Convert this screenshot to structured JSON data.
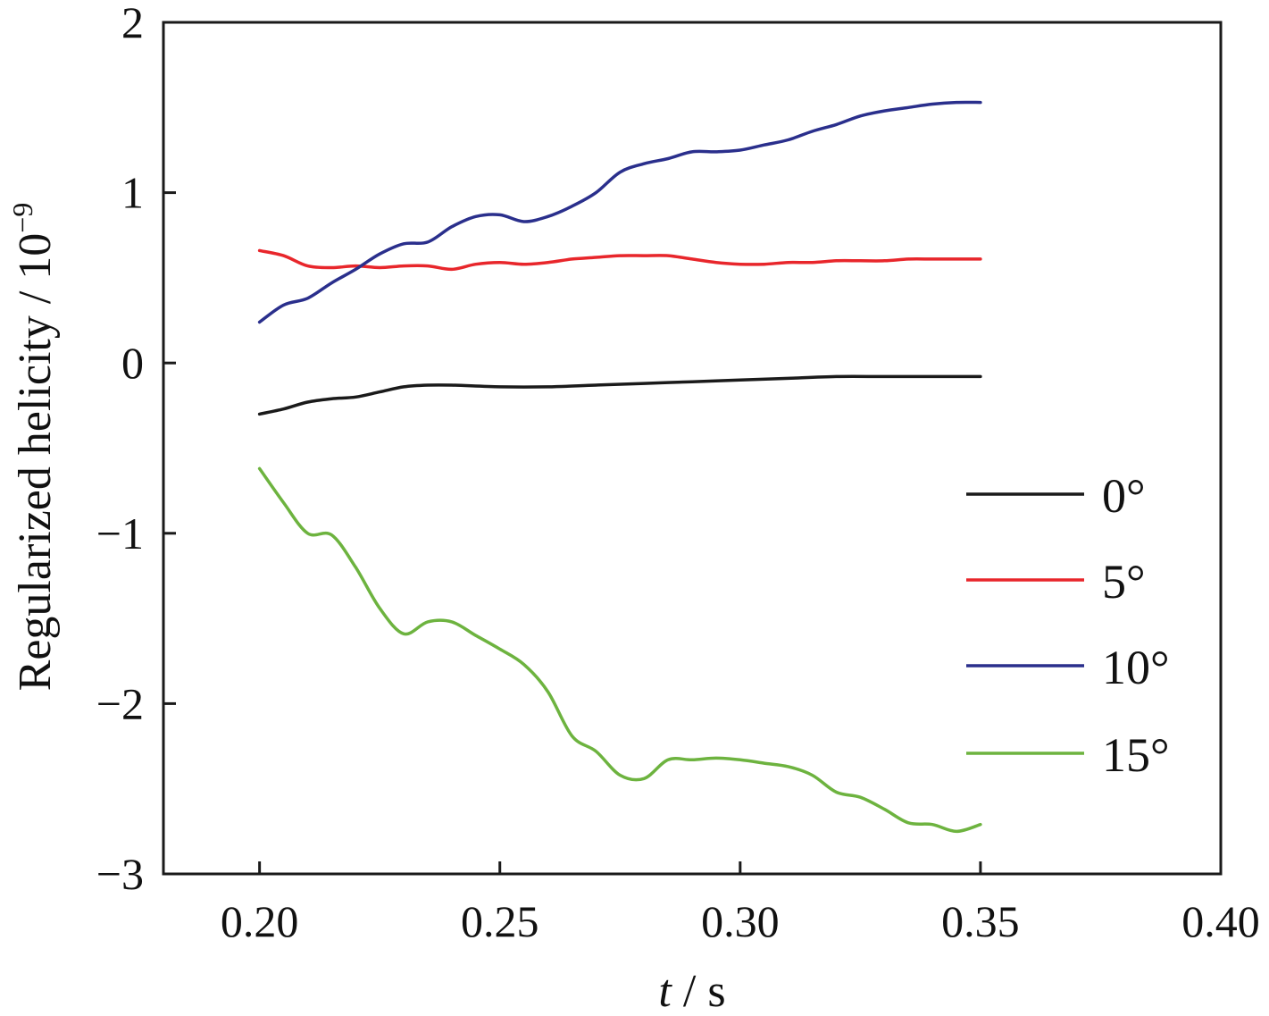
{
  "chart_data": {
    "type": "line",
    "title": "",
    "xlabel": {
      "var": "t",
      "sep": " / ",
      "unit": "s"
    },
    "ylabel": {
      "text": "Regularized helicity / 10",
      "exp": "−9"
    },
    "xlim": [
      0.18,
      0.4
    ],
    "ylim": [
      -3,
      2
    ],
    "xticks": [
      0.2,
      0.25,
      0.3,
      0.35,
      0.4
    ],
    "xtick_labels": [
      "0.20",
      "0.25",
      "0.30",
      "0.35",
      "0.40"
    ],
    "yticks": [
      2,
      1,
      0,
      -1,
      -2,
      -3
    ],
    "ytick_labels": [
      "2",
      "1",
      "0",
      "−1",
      "−2",
      "−3"
    ],
    "grid": false,
    "legend_position": "right",
    "series": [
      {
        "name": "0°",
        "color": "#1a1a1a",
        "x": [
          0.2,
          0.205,
          0.21,
          0.215,
          0.22,
          0.225,
          0.23,
          0.235,
          0.24,
          0.25,
          0.26,
          0.27,
          0.28,
          0.29,
          0.3,
          0.31,
          0.32,
          0.33,
          0.34,
          0.35
        ],
        "y": [
          -0.3,
          -0.27,
          -0.23,
          -0.21,
          -0.2,
          -0.17,
          -0.14,
          -0.13,
          -0.13,
          -0.14,
          -0.14,
          -0.13,
          -0.12,
          -0.11,
          -0.1,
          -0.09,
          -0.08,
          -0.08,
          -0.08,
          -0.08
        ]
      },
      {
        "name": "5°",
        "color": "#e8262b",
        "x": [
          0.2,
          0.205,
          0.21,
          0.215,
          0.22,
          0.225,
          0.23,
          0.235,
          0.24,
          0.245,
          0.25,
          0.255,
          0.26,
          0.265,
          0.27,
          0.275,
          0.28,
          0.285,
          0.29,
          0.295,
          0.3,
          0.305,
          0.31,
          0.315,
          0.32,
          0.325,
          0.33,
          0.335,
          0.34,
          0.345,
          0.35
        ],
        "y": [
          0.66,
          0.63,
          0.57,
          0.56,
          0.57,
          0.56,
          0.57,
          0.57,
          0.55,
          0.58,
          0.59,
          0.58,
          0.59,
          0.61,
          0.62,
          0.63,
          0.63,
          0.63,
          0.61,
          0.59,
          0.58,
          0.58,
          0.59,
          0.59,
          0.6,
          0.6,
          0.6,
          0.61,
          0.61,
          0.61,
          0.61
        ]
      },
      {
        "name": "10°",
        "color": "#2a2f8c",
        "x": [
          0.2,
          0.205,
          0.21,
          0.215,
          0.22,
          0.225,
          0.23,
          0.235,
          0.24,
          0.245,
          0.25,
          0.255,
          0.26,
          0.265,
          0.27,
          0.275,
          0.28,
          0.285,
          0.29,
          0.295,
          0.3,
          0.305,
          0.31,
          0.315,
          0.32,
          0.325,
          0.33,
          0.335,
          0.34,
          0.345,
          0.35
        ],
        "y": [
          0.24,
          0.34,
          0.38,
          0.47,
          0.55,
          0.64,
          0.7,
          0.71,
          0.8,
          0.86,
          0.87,
          0.83,
          0.86,
          0.92,
          1.0,
          1.12,
          1.17,
          1.2,
          1.24,
          1.24,
          1.25,
          1.28,
          1.31,
          1.36,
          1.4,
          1.45,
          1.48,
          1.5,
          1.52,
          1.53,
          1.53
        ]
      },
      {
        "name": "15°",
        "color": "#6db33f",
        "x": [
          0.2,
          0.205,
          0.21,
          0.215,
          0.22,
          0.225,
          0.23,
          0.235,
          0.24,
          0.245,
          0.25,
          0.255,
          0.26,
          0.265,
          0.27,
          0.275,
          0.28,
          0.285,
          0.29,
          0.295,
          0.3,
          0.305,
          0.31,
          0.315,
          0.32,
          0.325,
          0.33,
          0.335,
          0.34,
          0.345,
          0.35
        ],
        "y": [
          -0.62,
          -0.82,
          -1.0,
          -1.01,
          -1.2,
          -1.44,
          -1.59,
          -1.52,
          -1.52,
          -1.6,
          -1.68,
          -1.77,
          -1.93,
          -2.19,
          -2.28,
          -2.42,
          -2.44,
          -2.33,
          -2.33,
          -2.32,
          -2.33,
          -2.35,
          -2.37,
          -2.42,
          -2.52,
          -2.55,
          -2.62,
          -2.7,
          -2.71,
          -2.75,
          -2.71
        ]
      }
    ]
  }
}
